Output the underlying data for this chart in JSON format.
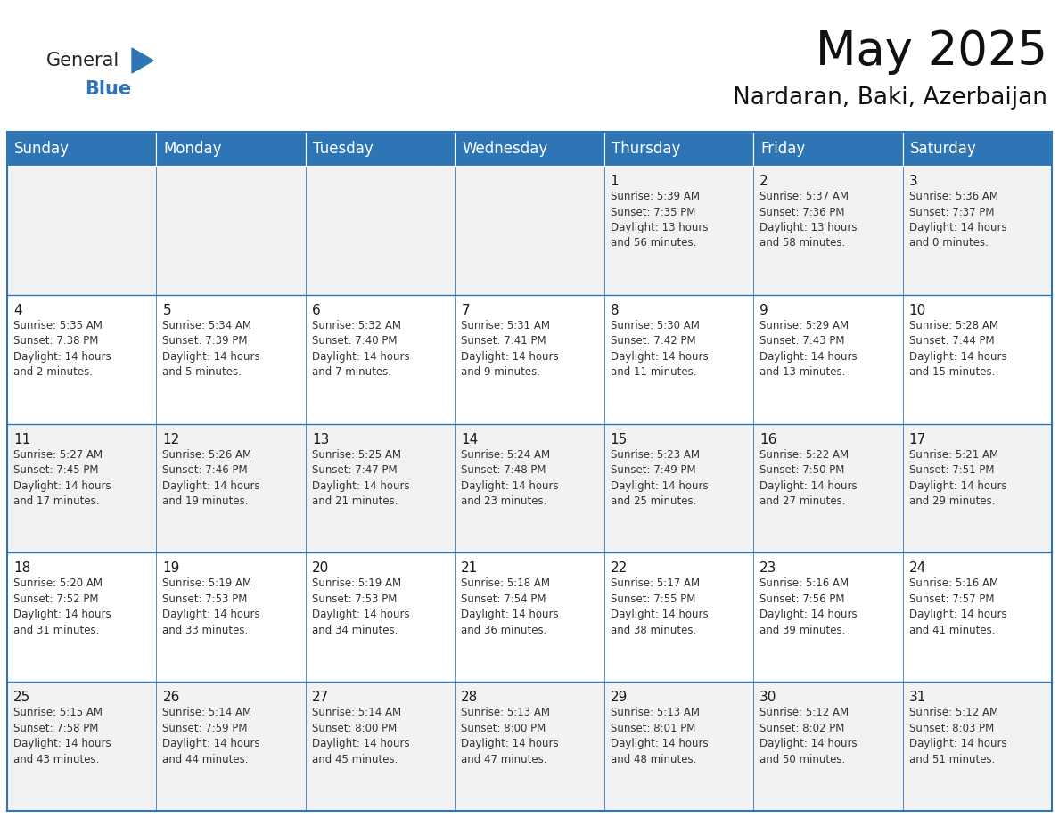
{
  "title": "May 2025",
  "subtitle": "Nardaran, Baki, Azerbaijan",
  "header_bg": "#2E75B6",
  "header_text_color": "#FFFFFF",
  "cell_bg_light": "#F2F2F2",
  "cell_bg_white": "#FFFFFF",
  "border_color": "#2E75B6",
  "day_headers": [
    "Sunday",
    "Monday",
    "Tuesday",
    "Wednesday",
    "Thursday",
    "Friday",
    "Saturday"
  ],
  "weeks": [
    [
      {
        "day": "",
        "text": ""
      },
      {
        "day": "",
        "text": ""
      },
      {
        "day": "",
        "text": ""
      },
      {
        "day": "",
        "text": ""
      },
      {
        "day": "1",
        "text": "Sunrise: 5:39 AM\nSunset: 7:35 PM\nDaylight: 13 hours\nand 56 minutes."
      },
      {
        "day": "2",
        "text": "Sunrise: 5:37 AM\nSunset: 7:36 PM\nDaylight: 13 hours\nand 58 minutes."
      },
      {
        "day": "3",
        "text": "Sunrise: 5:36 AM\nSunset: 7:37 PM\nDaylight: 14 hours\nand 0 minutes."
      }
    ],
    [
      {
        "day": "4",
        "text": "Sunrise: 5:35 AM\nSunset: 7:38 PM\nDaylight: 14 hours\nand 2 minutes."
      },
      {
        "day": "5",
        "text": "Sunrise: 5:34 AM\nSunset: 7:39 PM\nDaylight: 14 hours\nand 5 minutes."
      },
      {
        "day": "6",
        "text": "Sunrise: 5:32 AM\nSunset: 7:40 PM\nDaylight: 14 hours\nand 7 minutes."
      },
      {
        "day": "7",
        "text": "Sunrise: 5:31 AM\nSunset: 7:41 PM\nDaylight: 14 hours\nand 9 minutes."
      },
      {
        "day": "8",
        "text": "Sunrise: 5:30 AM\nSunset: 7:42 PM\nDaylight: 14 hours\nand 11 minutes."
      },
      {
        "day": "9",
        "text": "Sunrise: 5:29 AM\nSunset: 7:43 PM\nDaylight: 14 hours\nand 13 minutes."
      },
      {
        "day": "10",
        "text": "Sunrise: 5:28 AM\nSunset: 7:44 PM\nDaylight: 14 hours\nand 15 minutes."
      }
    ],
    [
      {
        "day": "11",
        "text": "Sunrise: 5:27 AM\nSunset: 7:45 PM\nDaylight: 14 hours\nand 17 minutes."
      },
      {
        "day": "12",
        "text": "Sunrise: 5:26 AM\nSunset: 7:46 PM\nDaylight: 14 hours\nand 19 minutes."
      },
      {
        "day": "13",
        "text": "Sunrise: 5:25 AM\nSunset: 7:47 PM\nDaylight: 14 hours\nand 21 minutes."
      },
      {
        "day": "14",
        "text": "Sunrise: 5:24 AM\nSunset: 7:48 PM\nDaylight: 14 hours\nand 23 minutes."
      },
      {
        "day": "15",
        "text": "Sunrise: 5:23 AM\nSunset: 7:49 PM\nDaylight: 14 hours\nand 25 minutes."
      },
      {
        "day": "16",
        "text": "Sunrise: 5:22 AM\nSunset: 7:50 PM\nDaylight: 14 hours\nand 27 minutes."
      },
      {
        "day": "17",
        "text": "Sunrise: 5:21 AM\nSunset: 7:51 PM\nDaylight: 14 hours\nand 29 minutes."
      }
    ],
    [
      {
        "day": "18",
        "text": "Sunrise: 5:20 AM\nSunset: 7:52 PM\nDaylight: 14 hours\nand 31 minutes."
      },
      {
        "day": "19",
        "text": "Sunrise: 5:19 AM\nSunset: 7:53 PM\nDaylight: 14 hours\nand 33 minutes."
      },
      {
        "day": "20",
        "text": "Sunrise: 5:19 AM\nSunset: 7:53 PM\nDaylight: 14 hours\nand 34 minutes."
      },
      {
        "day": "21",
        "text": "Sunrise: 5:18 AM\nSunset: 7:54 PM\nDaylight: 14 hours\nand 36 minutes."
      },
      {
        "day": "22",
        "text": "Sunrise: 5:17 AM\nSunset: 7:55 PM\nDaylight: 14 hours\nand 38 minutes."
      },
      {
        "day": "23",
        "text": "Sunrise: 5:16 AM\nSunset: 7:56 PM\nDaylight: 14 hours\nand 39 minutes."
      },
      {
        "day": "24",
        "text": "Sunrise: 5:16 AM\nSunset: 7:57 PM\nDaylight: 14 hours\nand 41 minutes."
      }
    ],
    [
      {
        "day": "25",
        "text": "Sunrise: 5:15 AM\nSunset: 7:58 PM\nDaylight: 14 hours\nand 43 minutes."
      },
      {
        "day": "26",
        "text": "Sunrise: 5:14 AM\nSunset: 7:59 PM\nDaylight: 14 hours\nand 44 minutes."
      },
      {
        "day": "27",
        "text": "Sunrise: 5:14 AM\nSunset: 8:00 PM\nDaylight: 14 hours\nand 45 minutes."
      },
      {
        "day": "28",
        "text": "Sunrise: 5:13 AM\nSunset: 8:00 PM\nDaylight: 14 hours\nand 47 minutes."
      },
      {
        "day": "29",
        "text": "Sunrise: 5:13 AM\nSunset: 8:01 PM\nDaylight: 14 hours\nand 48 minutes."
      },
      {
        "day": "30",
        "text": "Sunrise: 5:12 AM\nSunset: 8:02 PM\nDaylight: 14 hours\nand 50 minutes."
      },
      {
        "day": "31",
        "text": "Sunrise: 5:12 AM\nSunset: 8:03 PM\nDaylight: 14 hours\nand 51 minutes."
      }
    ]
  ],
  "logo_general_color": "#222222",
  "logo_blue_color": "#2E75B6",
  "title_fontsize": 38,
  "subtitle_fontsize": 19,
  "header_fontsize": 12,
  "day_num_fontsize": 11,
  "cell_text_fontsize": 8.5
}
